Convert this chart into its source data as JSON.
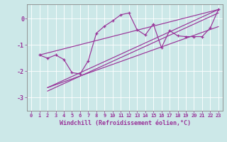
{
  "xlabel": "Windchill (Refroidissement éolien,°C)",
  "bg_color": "#cce8e8",
  "line_color": "#993399",
  "x_ticks": [
    0,
    1,
    2,
    3,
    4,
    5,
    6,
    7,
    8,
    9,
    10,
    11,
    12,
    13,
    14,
    15,
    16,
    17,
    18,
    19,
    20,
    21,
    22,
    23
  ],
  "y_ticks": [
    0,
    -1,
    -2,
    -3
  ],
  "ylim": [
    -3.5,
    0.55
  ],
  "xlim": [
    -0.5,
    23.5
  ],
  "zigzag_x": [
    1,
    2,
    3,
    4,
    5,
    6,
    7,
    8,
    9,
    10,
    11,
    12,
    13,
    14,
    15,
    16,
    17,
    18,
    19,
    20,
    21,
    22,
    23
  ],
  "zigzag_y": [
    -1.38,
    -1.5,
    -1.38,
    -1.55,
    -2.05,
    -2.1,
    -1.6,
    -0.55,
    -0.28,
    -0.08,
    0.15,
    0.22,
    -0.42,
    -0.62,
    -0.2,
    -1.1,
    -0.45,
    -0.65,
    -0.68,
    -0.68,
    -0.68,
    -0.35,
    0.35
  ],
  "upper_line": {
    "x": [
      1,
      23
    ],
    "y": [
      -1.38,
      0.35
    ]
  },
  "lower_line1": {
    "x": [
      2,
      23
    ],
    "y": [
      -2.62,
      0.35
    ]
  },
  "lower_line2": {
    "x": [
      2,
      23
    ],
    "y": [
      -2.75,
      0.22
    ]
  },
  "mid_line": {
    "x": [
      2,
      23
    ],
    "y": [
      -2.62,
      -0.3
    ]
  }
}
